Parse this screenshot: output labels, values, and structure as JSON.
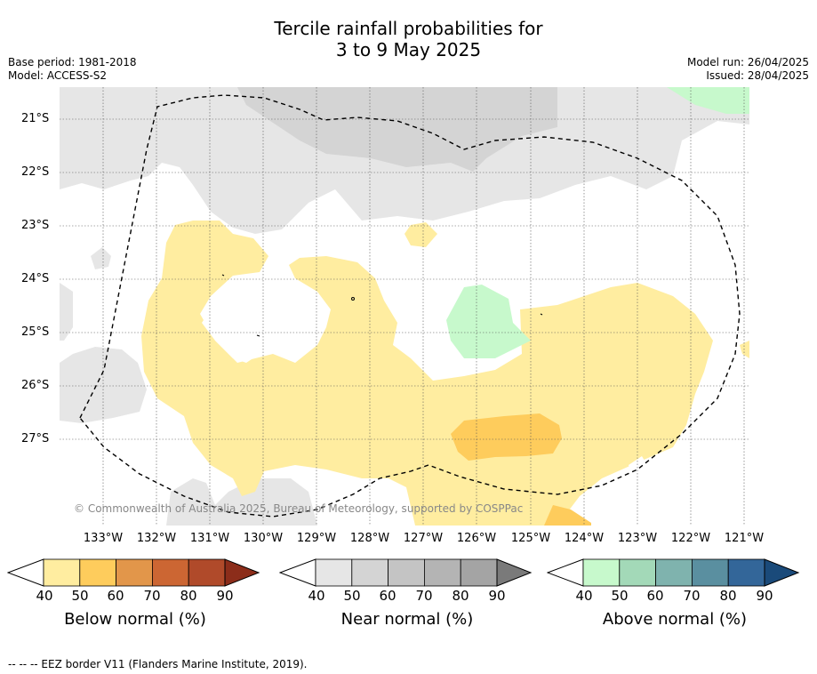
{
  "title": {
    "line1": "Tercile rainfall probabilities for",
    "line2": "3 to 9 May 2025"
  },
  "meta": {
    "base_period": "Base period: 1981-2018",
    "model": "Model: ACCESS-S2",
    "model_run": "Model run: 26/04/2025",
    "issued": "Issued: 28/04/2025"
  },
  "map": {
    "lat_ticks": [
      "21°S",
      "22°S",
      "23°S",
      "24°S",
      "25°S",
      "26°S",
      "27°S"
    ],
    "lon_ticks": [
      "133°W",
      "132°W",
      "131°W",
      "130°W",
      "129°W",
      "128°W",
      "127°W",
      "126°W",
      "125°W",
      "124°W",
      "123°W",
      "122°W",
      "121°W"
    ],
    "copyright": "© Commonwealth of Australia 2025, Bureau of Meteorology, supported by COSPPac",
    "colors": {
      "below_40": "#ffeda0",
      "below_50": "#fecc5c",
      "near_40": "#e6e6e6",
      "near_50": "#d4d4d4",
      "above_40": "#c7f9cc",
      "eez": "#000000"
    }
  },
  "colorbars": [
    {
      "label": "Below normal (%)",
      "ticks": [
        "40",
        "50",
        "60",
        "70",
        "80",
        "90"
      ],
      "colors": [
        "#ffffff",
        "#ffeda0",
        "#fecc5c",
        "#e2964a",
        "#cc6633",
        "#b04a2a",
        "#8c2d1a"
      ]
    },
    {
      "label": "Near normal (%)",
      "ticks": [
        "40",
        "50",
        "60",
        "70",
        "80",
        "90"
      ],
      "colors": [
        "#ffffff",
        "#e6e6e6",
        "#d4d4d4",
        "#c4c4c4",
        "#b4b4b4",
        "#a4a4a4",
        "#7a7a7a"
      ]
    },
    {
      "label": "Above normal (%)",
      "ticks": [
        "40",
        "50",
        "60",
        "70",
        "80",
        "90"
      ],
      "colors": [
        "#ffffff",
        "#c7f9cc",
        "#a3d9b8",
        "#7fb3ae",
        "#5a8fa0",
        "#336699",
        "#1a4a7a"
      ]
    }
  ],
  "footer": "-- -- -- EEZ border V11 (Flanders Marine Institute, 2019)."
}
